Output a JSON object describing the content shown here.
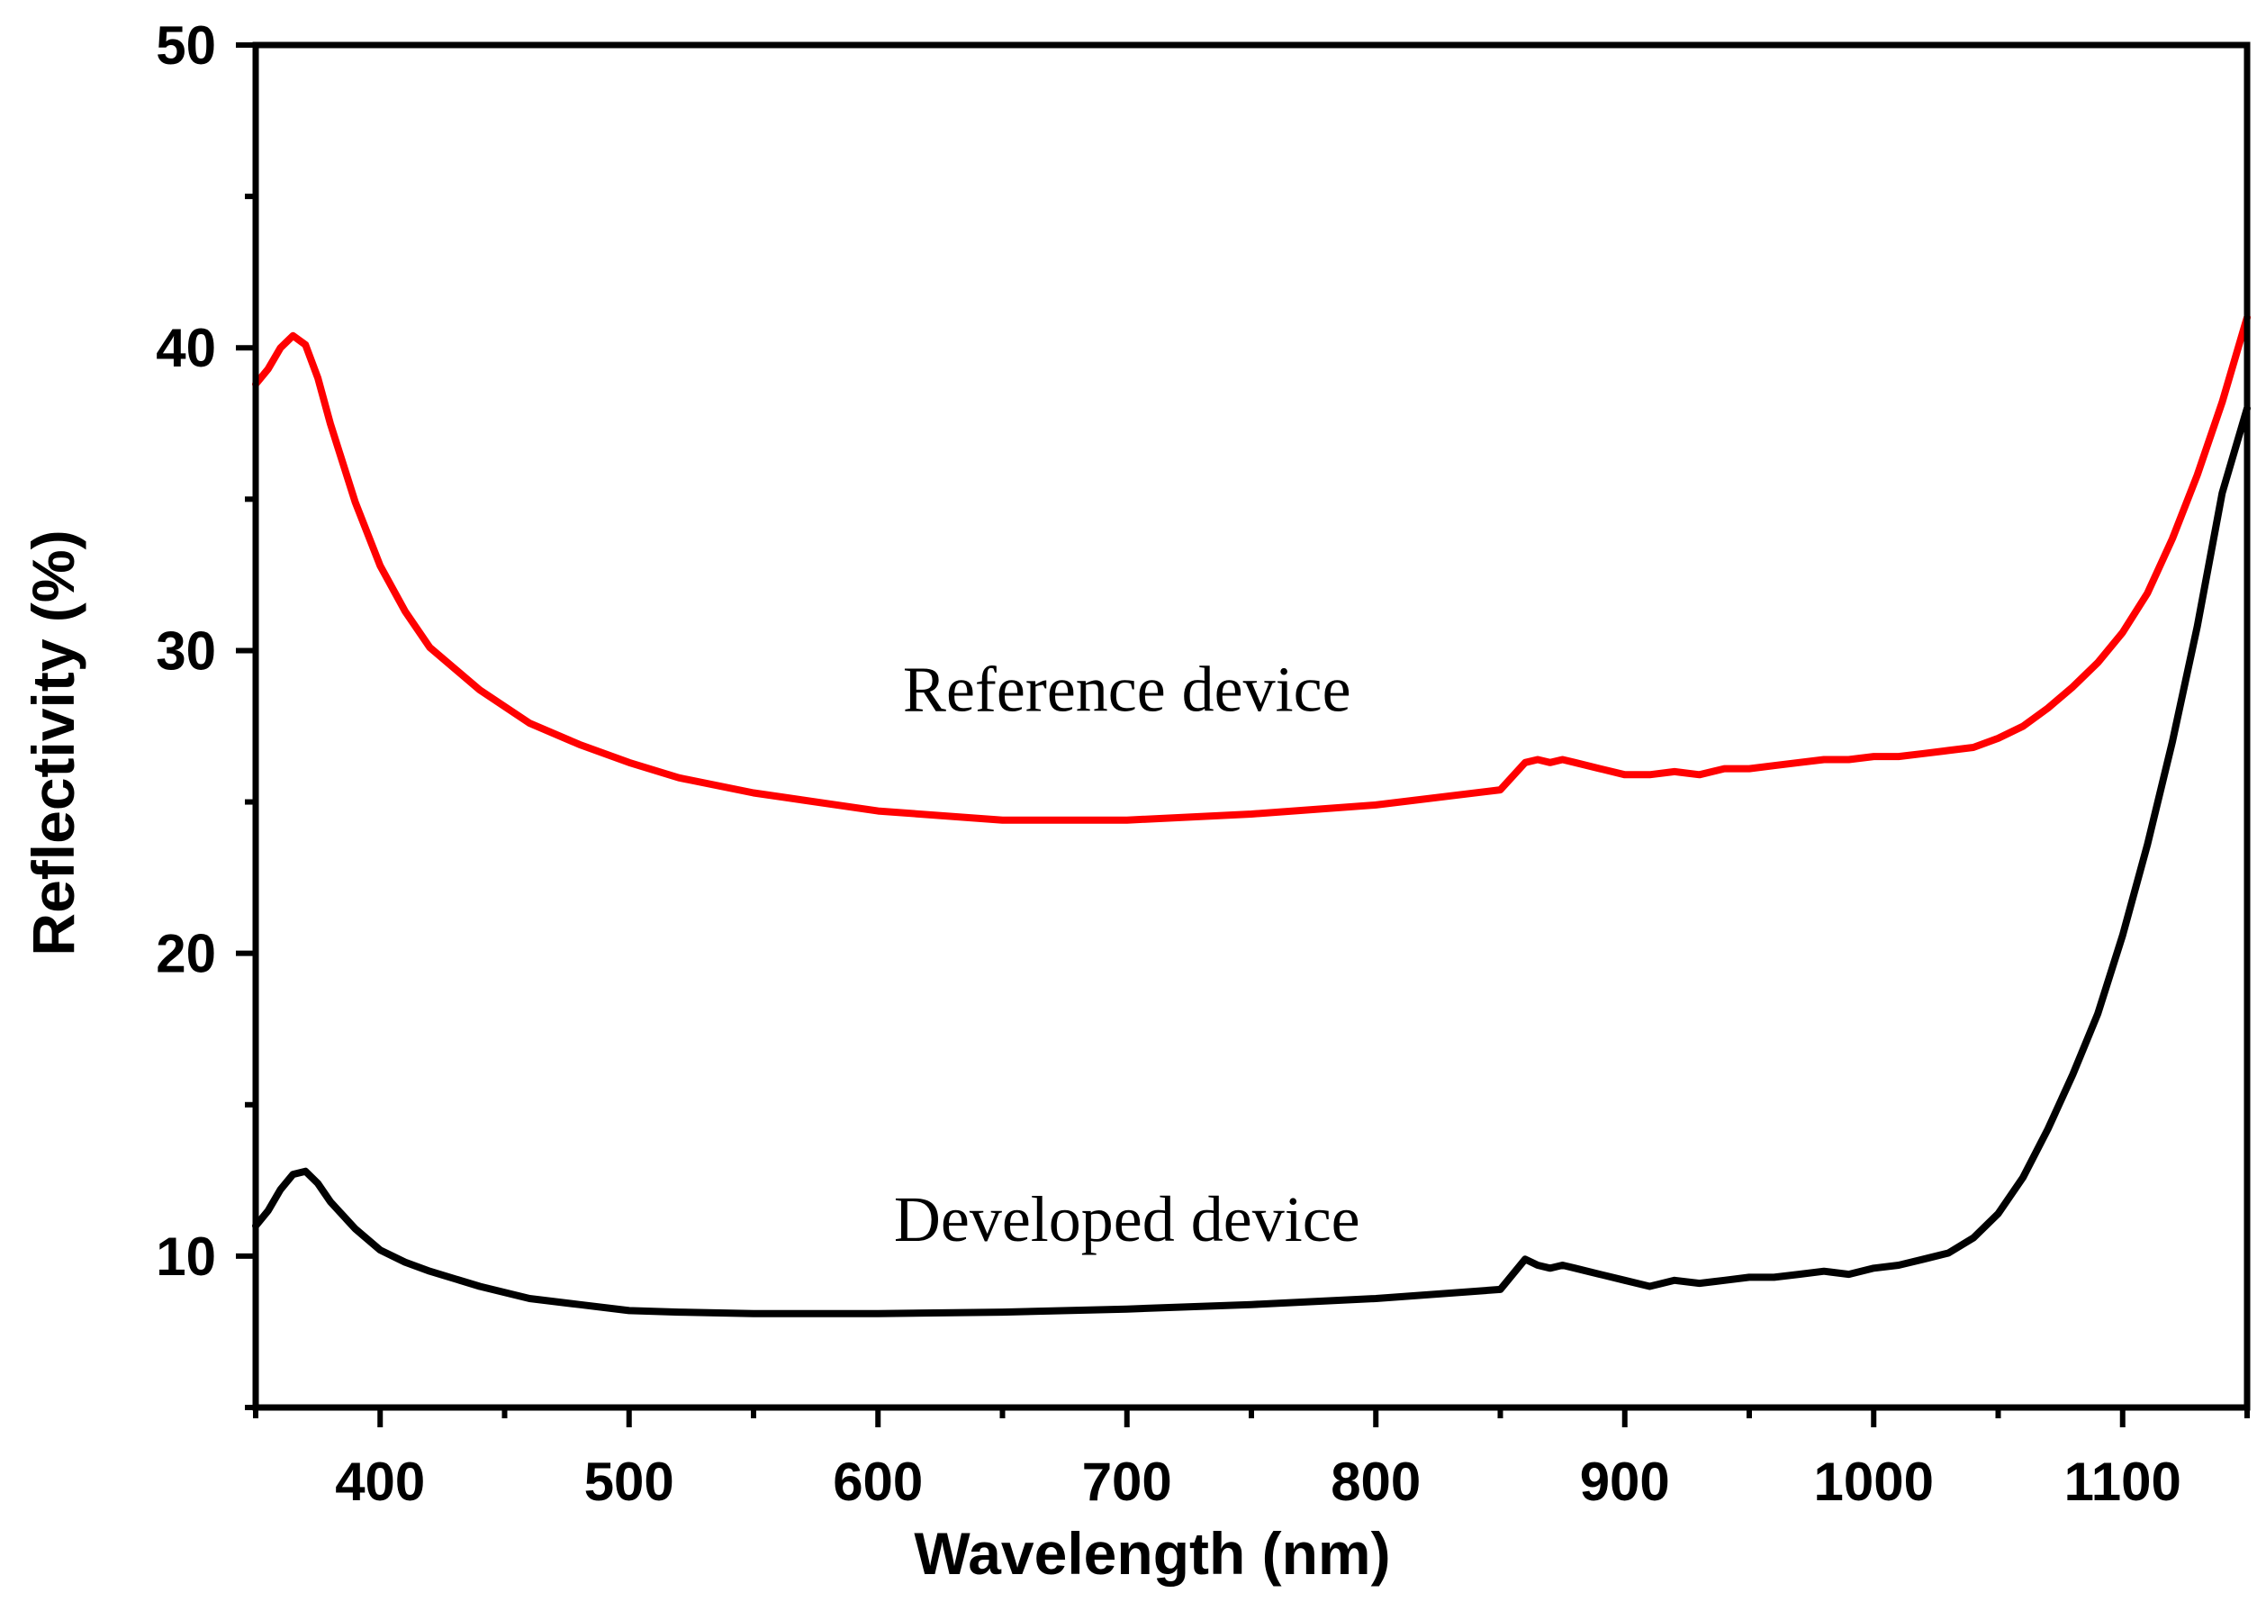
{
  "chart_data": {
    "type": "line",
    "title": "",
    "xlabel": "Wavelength (nm)",
    "ylabel": "Reflectivity  (%)",
    "xlim": [
      350,
      1150
    ],
    "ylim": [
      5,
      50
    ],
    "xticks": [
      400,
      500,
      600,
      700,
      800,
      900,
      1000,
      1100
    ],
    "yticks": [
      10,
      20,
      30,
      40,
      50
    ],
    "grid": false,
    "legend": "none",
    "annotations": [
      {
        "text": "Reference device",
        "series": "Reference device",
        "x": 700,
        "y": 28
      },
      {
        "text": "Developed device",
        "series": "Developed device",
        "x": 700,
        "y": 10.5
      }
    ],
    "series": [
      {
        "name": "Reference device",
        "color": "#ff0000",
        "x": [
          350,
          355,
          360,
          365,
          370,
          375,
          380,
          390,
          400,
          410,
          420,
          440,
          460,
          480,
          500,
          520,
          550,
          600,
          650,
          700,
          750,
          800,
          850,
          860,
          865,
          870,
          875,
          880,
          890,
          900,
          910,
          920,
          930,
          940,
          950,
          960,
          970,
          980,
          990,
          1000,
          1010,
          1020,
          1030,
          1040,
          1050,
          1060,
          1070,
          1080,
          1090,
          1100,
          1110,
          1120,
          1130,
          1140,
          1150
        ],
        "y": [
          38.8,
          39.3,
          40.0,
          40.4,
          40.1,
          39.0,
          37.5,
          34.9,
          32.8,
          31.3,
          30.1,
          28.7,
          27.6,
          26.9,
          26.3,
          25.8,
          25.3,
          24.7,
          24.4,
          24.4,
          24.6,
          24.9,
          25.4,
          26.3,
          26.4,
          26.3,
          26.4,
          26.3,
          26.1,
          25.9,
          25.9,
          26.0,
          25.9,
          26.1,
          26.1,
          26.2,
          26.3,
          26.4,
          26.4,
          26.5,
          26.5,
          26.6,
          26.7,
          26.8,
          27.1,
          27.5,
          28.1,
          28.8,
          29.6,
          30.6,
          31.9,
          33.7,
          35.8,
          38.2,
          41.0
        ]
      },
      {
        "name": "Developed device",
        "color": "#000000",
        "x": [
          350,
          355,
          360,
          365,
          370,
          375,
          380,
          390,
          400,
          410,
          420,
          440,
          460,
          480,
          500,
          520,
          550,
          600,
          650,
          700,
          750,
          800,
          850,
          860,
          865,
          870,
          875,
          880,
          890,
          900,
          910,
          920,
          930,
          940,
          950,
          960,
          970,
          980,
          990,
          1000,
          1010,
          1020,
          1030,
          1040,
          1050,
          1060,
          1070,
          1080,
          1090,
          1100,
          1110,
          1120,
          1130,
          1140,
          1150
        ],
        "y": [
          11.0,
          11.5,
          12.2,
          12.7,
          12.8,
          12.4,
          11.8,
          10.9,
          10.2,
          9.8,
          9.5,
          9.0,
          8.6,
          8.4,
          8.2,
          8.15,
          8.1,
          8.1,
          8.15,
          8.25,
          8.4,
          8.6,
          8.9,
          9.9,
          9.7,
          9.6,
          9.7,
          9.6,
          9.4,
          9.2,
          9.0,
          9.2,
          9.1,
          9.2,
          9.3,
          9.3,
          9.4,
          9.5,
          9.4,
          9.6,
          9.7,
          9.9,
          10.1,
          10.6,
          11.4,
          12.6,
          14.2,
          16.0,
          18.0,
          20.6,
          23.6,
          27.0,
          30.8,
          35.2,
          38.0
        ]
      }
    ]
  }
}
